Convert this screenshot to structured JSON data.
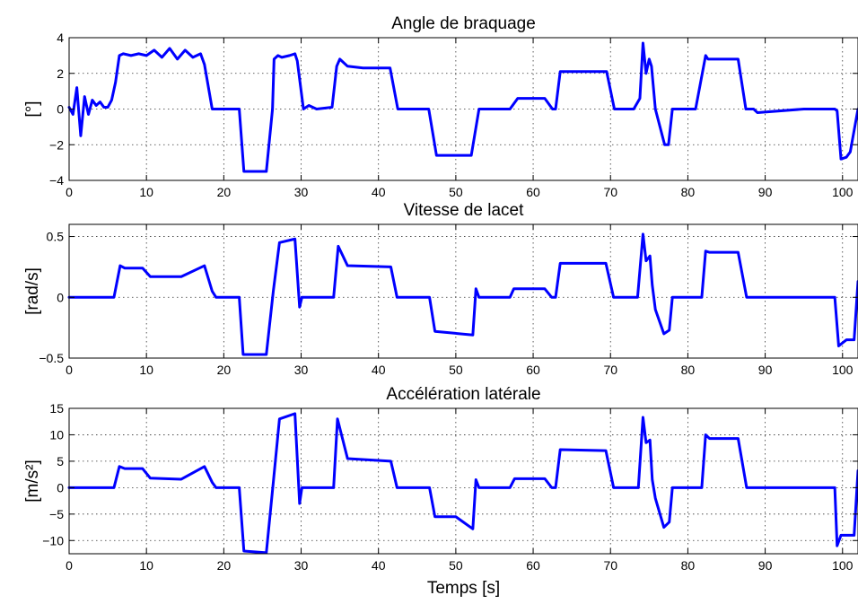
{
  "colors": {
    "series": "#0000ff",
    "axis": "#000000",
    "background": "#ffffff"
  },
  "chart_data": [
    {
      "type": "line",
      "title": "Angle de braquage",
      "xlabel": "",
      "ylabel": "[°]",
      "xlim": [
        0,
        102
      ],
      "ylim": [
        -4,
        4
      ],
      "xticks": [
        0,
        10,
        20,
        30,
        40,
        50,
        60,
        70,
        80,
        90,
        100
      ],
      "yticks": [
        -4,
        -2,
        0,
        2,
        4
      ],
      "xtick_labels": [
        "0",
        "10",
        "20",
        "30",
        "40",
        "50",
        "60",
        "70",
        "80",
        "90",
        "100"
      ],
      "ytick_labels": [
        "−4",
        "−2",
        "0",
        "2",
        "4"
      ],
      "grid": true,
      "series": [
        {
          "x": [
            0,
            0.5,
            1.0,
            1.5,
            2.0,
            2.5,
            3.0,
            3.5,
            4.0,
            4.5,
            5.0,
            5.5,
            6.0,
            6.5,
            7,
            8,
            9,
            10,
            11,
            12,
            13,
            14,
            15,
            16,
            17,
            17.5,
            18.5,
            19,
            22,
            22.6,
            25.5,
            26.3,
            26.5,
            27,
            27.5,
            28.5,
            29.2,
            29.5,
            30.3,
            31,
            32,
            34,
            34.6,
            35,
            36,
            38,
            41.5,
            42.5,
            46.5,
            47.5,
            52,
            53,
            57,
            58,
            61.5,
            62.5,
            62.9,
            63.5,
            69.5,
            70.5,
            73,
            73.8,
            74.2,
            74.6,
            75,
            75.3,
            75.8,
            77,
            77.5,
            78,
            79,
            81,
            82.3,
            82.6,
            86.5,
            87.5,
            88.5,
            89,
            95,
            99,
            99.3,
            99.8,
            100.5,
            101,
            102
          ],
          "y": [
            0.1,
            -0.3,
            1.2,
            -1.5,
            0.7,
            -0.3,
            0.5,
            0.2,
            0.4,
            0.1,
            0.1,
            0.5,
            1.5,
            3.0,
            3.1,
            3.0,
            3.1,
            3.0,
            3.3,
            2.9,
            3.4,
            2.8,
            3.3,
            2.9,
            3.1,
            2.5,
            0,
            0,
            0,
            -3.5,
            -3.5,
            0,
            2.8,
            3.0,
            2.9,
            3.0,
            3.1,
            2.7,
            0,
            0.2,
            0,
            0.1,
            2.4,
            2.8,
            2.4,
            2.3,
            2.3,
            0,
            0,
            -2.6,
            -2.6,
            0,
            0,
            0.6,
            0.6,
            0,
            0,
            2.1,
            2.1,
            0,
            0,
            0.6,
            3.7,
            2.0,
            2.8,
            2.4,
            0,
            -2.0,
            -2.0,
            0,
            0,
            0,
            3.0,
            2.8,
            2.8,
            0,
            0,
            -0.2,
            0,
            0,
            -0.1,
            -2.8,
            -2.7,
            -2.4,
            0
          ]
        }
      ]
    },
    {
      "type": "line",
      "title": "Vitesse de lacet",
      "xlabel": "",
      "ylabel": "[rad/s]",
      "xlim": [
        0,
        102
      ],
      "ylim": [
        -0.5,
        0.6
      ],
      "xticks": [
        0,
        10,
        20,
        30,
        40,
        50,
        60,
        70,
        80,
        90,
        100
      ],
      "yticks": [
        -0.5,
        0,
        0.5
      ],
      "xtick_labels": [
        "0",
        "10",
        "20",
        "30",
        "40",
        "50",
        "60",
        "70",
        "80",
        "90",
        "100"
      ],
      "ytick_labels": [
        "−0.5",
        "0",
        "0.5"
      ],
      "grid": true,
      "series": [
        {
          "x": [
            0,
            5.8,
            6.6,
            7.2,
            9.5,
            10.5,
            14.5,
            17.5,
            18.5,
            19,
            22,
            22.5,
            25.5,
            26.4,
            27.2,
            29.2,
            29.8,
            30.1,
            30.6,
            34.2,
            34.8,
            36,
            41.6,
            42.4,
            46.6,
            47.3,
            52.2,
            52.6,
            53,
            57,
            57.5,
            61.5,
            62.4,
            62.9,
            63.5,
            69.4,
            70.4,
            73.5,
            74.2,
            74.6,
            75.1,
            75.4,
            75.8,
            76.9,
            77.6,
            78,
            79,
            81.8,
            82.3,
            82.8,
            86.5,
            87.6,
            89,
            99,
            99.5,
            100.5,
            101.5,
            102
          ],
          "y": [
            0,
            0,
            0.26,
            0.24,
            0.24,
            0.17,
            0.17,
            0.26,
            0.05,
            0,
            0,
            -0.47,
            -0.47,
            0.05,
            0.45,
            0.48,
            -0.08,
            0,
            0,
            0,
            0.42,
            0.26,
            0.25,
            0,
            0,
            -0.28,
            -0.31,
            0.07,
            0,
            0,
            0.07,
            0.07,
            0,
            0,
            0.28,
            0.28,
            0,
            0,
            0.52,
            0.3,
            0.34,
            0.1,
            -0.1,
            -0.3,
            -0.27,
            0,
            0,
            0,
            0.38,
            0.37,
            0.37,
            0,
            0,
            0,
            -0.4,
            -0.35,
            -0.35,
            0.13
          ]
        }
      ]
    },
    {
      "type": "line",
      "title": "Accélération latérale",
      "xlabel": "Temps [s]",
      "ylabel": "[m/s²]",
      "xlim": [
        0,
        102
      ],
      "ylim": [
        -12.5,
        15
      ],
      "xticks": [
        0,
        10,
        20,
        30,
        40,
        50,
        60,
        70,
        80,
        90,
        100
      ],
      "yticks": [
        -10,
        -5,
        0,
        5,
        10,
        15
      ],
      "xtick_labels": [
        "0",
        "10",
        "20",
        "30",
        "40",
        "50",
        "60",
        "70",
        "80",
        "90",
        "100"
      ],
      "ytick_labels": [
        "−10",
        "−5",
        "0",
        "5",
        "10",
        "15"
      ],
      "grid": true,
      "series": [
        {
          "x": [
            0,
            5.8,
            6.5,
            7.2,
            9.5,
            10.5,
            14.5,
            17.5,
            18.5,
            19,
            22,
            22.6,
            25.5,
            26.4,
            27.2,
            29.2,
            29.8,
            30.1,
            30.6,
            34.2,
            34.7,
            36,
            41.6,
            42.4,
            46.6,
            47.3,
            50,
            52.2,
            52.6,
            53,
            57,
            57.6,
            61.5,
            62.4,
            62.9,
            63.5,
            69.4,
            70.4,
            73.6,
            74.2,
            74.6,
            75.1,
            75.4,
            75.8,
            76.9,
            77.6,
            78,
            79,
            81.8,
            82.3,
            82.8,
            86.5,
            87.6,
            89,
            99,
            99.3,
            99.8,
            100.5,
            101.5,
            102
          ],
          "y": [
            0,
            0,
            4.0,
            3.6,
            3.6,
            1.8,
            1.6,
            4.0,
            1.0,
            0,
            0,
            -12.0,
            -12.3,
            1.0,
            13.0,
            14.0,
            -3.0,
            0,
            0,
            0,
            13.0,
            5.5,
            5.0,
            0,
            0,
            -5.5,
            -5.5,
            -7.8,
            1.5,
            0,
            0,
            1.7,
            1.7,
            0,
            0,
            7.2,
            7.0,
            0,
            0,
            13.3,
            8.5,
            9.0,
            1.5,
            -2.0,
            -7.5,
            -6.5,
            0,
            0,
            0,
            10.0,
            9.3,
            9.3,
            0,
            0,
            0,
            -11.0,
            -9.0,
            -9.0,
            -9.0,
            3.2
          ]
        }
      ]
    }
  ]
}
